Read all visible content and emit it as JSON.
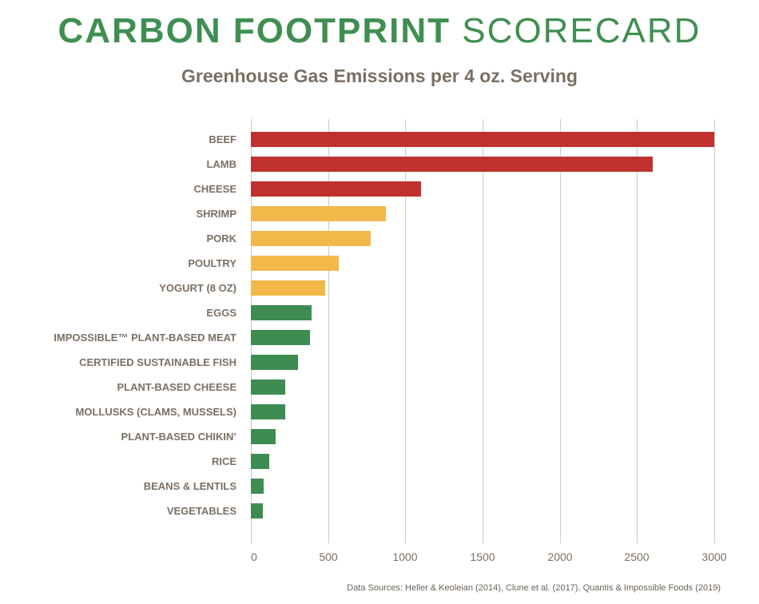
{
  "header": {
    "title_bold": "CARBON FOOTPRINT",
    "title_light": "SCORECARD",
    "subtitle": "Greenhouse Gas Emissions per 4 oz. Serving"
  },
  "colors": {
    "high": "#c0312f",
    "medium": "#f2b84a",
    "low": "#3f8c52",
    "title": "#3f8f52",
    "text": "#7b6f64"
  },
  "chart_data": {
    "type": "bar",
    "orientation": "horizontal",
    "title": "CARBON FOOTPRINT SCORECARD",
    "subtitle": "Greenhouse Gas Emissions per 4 oz. Serving",
    "xlabel": "",
    "ylabel": "",
    "xlim": [
      0,
      3000
    ],
    "xticks": [
      0,
      500,
      1000,
      1500,
      2000,
      2500,
      3000
    ],
    "grid": true,
    "legend": null,
    "categories": [
      "BEEF",
      "LAMB",
      "CHEESE",
      "SHRIMP",
      "PORK",
      "POULTRY",
      "YOGURT (8 OZ)",
      "EGGS",
      "IMPOSSIBLE™ PLANT-BASED MEAT",
      "CERTIFIED SUSTAINABLE FISH",
      "PLANT-BASED CHEESE",
      "MOLLUSKS (CLAMS, MUSSELS)",
      "PLANT-BASED CHIKIN’",
      "RICE",
      "BEANS & LENTILS",
      "VEGETABLES"
    ],
    "values": [
      3000,
      2600,
      1100,
      875,
      775,
      570,
      480,
      395,
      385,
      305,
      220,
      220,
      160,
      120,
      85,
      80
    ],
    "tiers": [
      "high",
      "high",
      "high",
      "medium",
      "medium",
      "medium",
      "medium",
      "low",
      "low",
      "low",
      "low",
      "low",
      "low",
      "low",
      "low",
      "low"
    ],
    "source": "Data Sources: Heller & Keoleian (2014), Clune et al. (2017), Quantis & Impossible Foods (2019)"
  }
}
